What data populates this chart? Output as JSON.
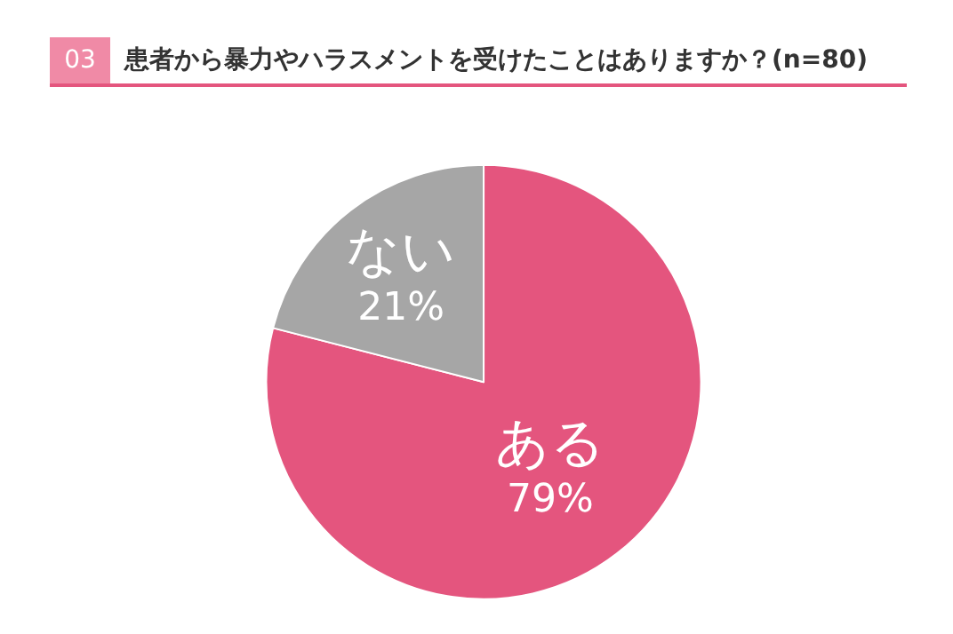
{
  "chart_data": {
    "type": "pie",
    "title": "患者から暴力やハラスメントを受けたことはありますか？(n=80)",
    "annotations": [
      "03"
    ],
    "categories": [
      "ある",
      "ない"
    ],
    "values": [
      79,
      21
    ],
    "colors": [
      "#e4557e",
      "#a6a6a6"
    ],
    "value_labels": [
      "79%",
      "21%"
    ],
    "legend": false
  }
}
